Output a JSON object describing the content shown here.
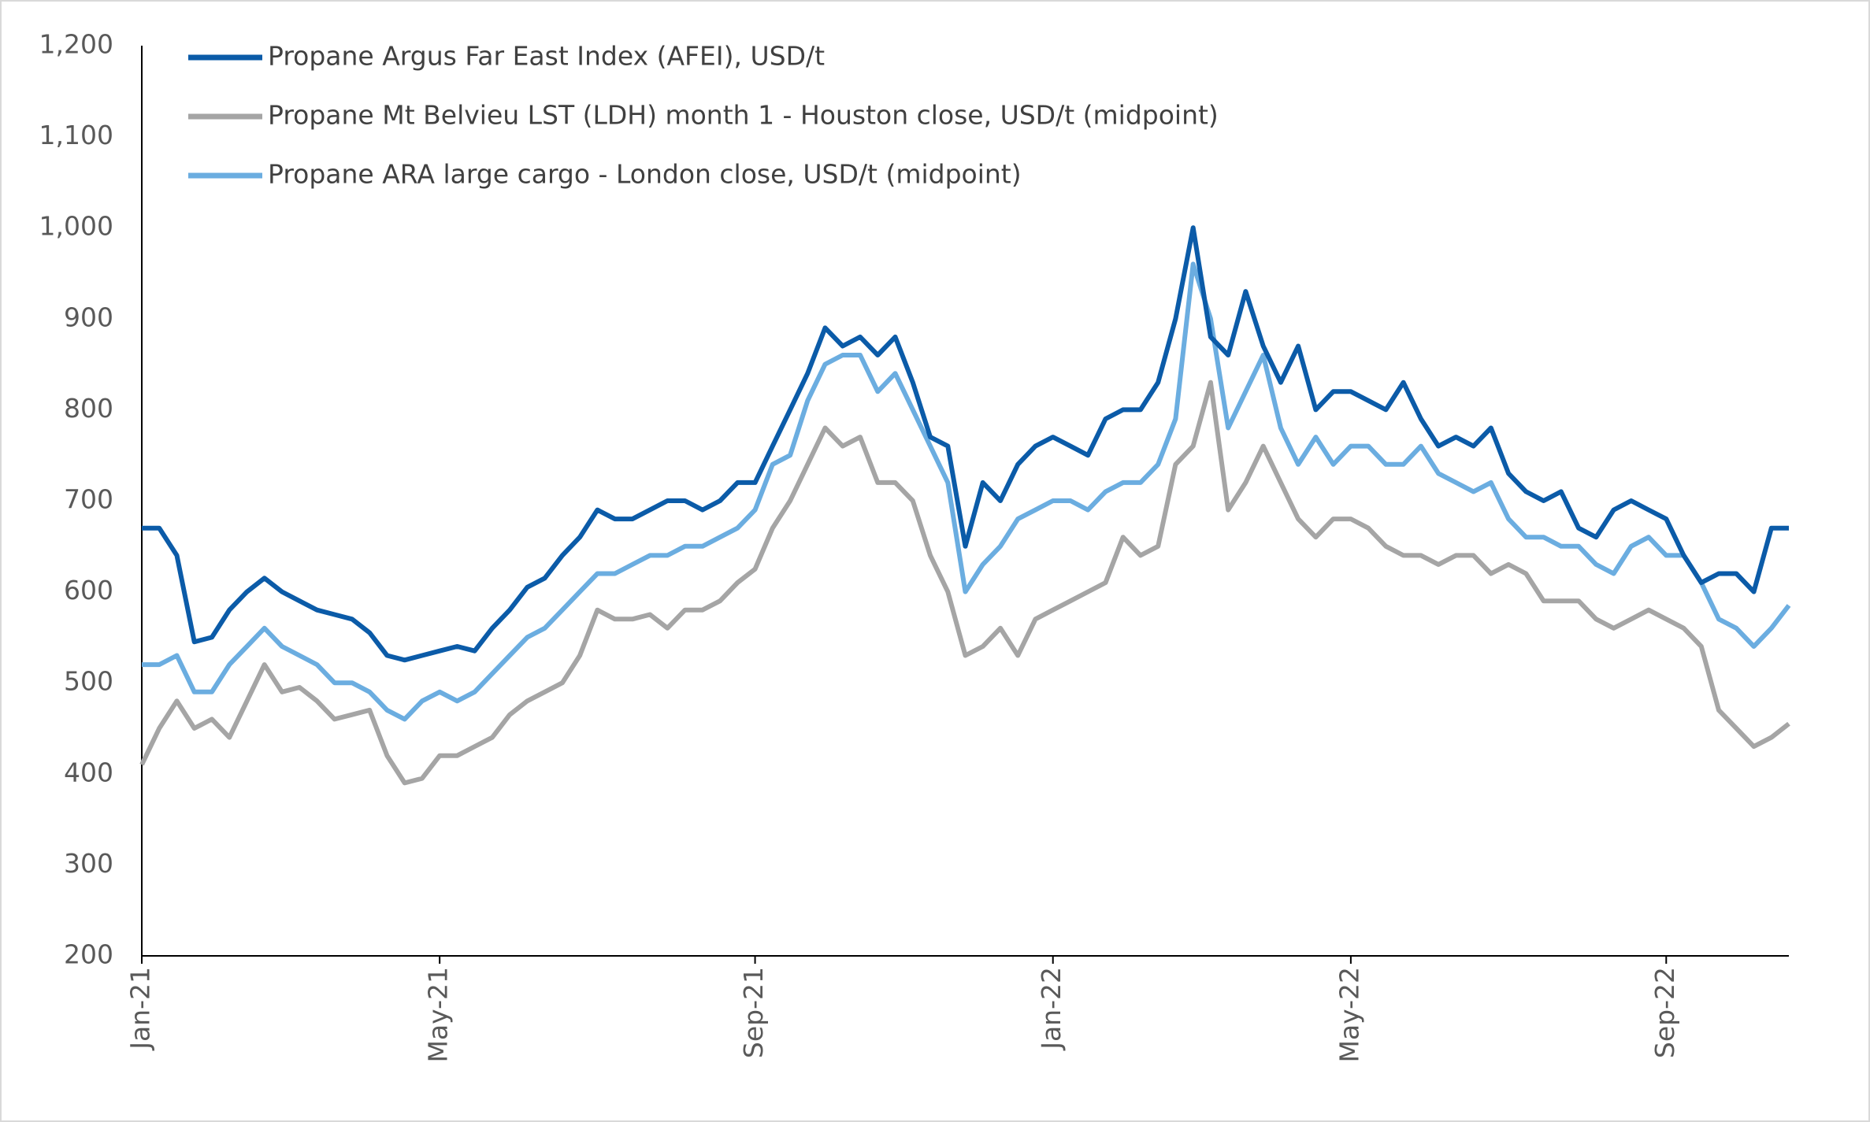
{
  "chart_data": {
    "type": "line",
    "categories": [
      "Jan-21",
      null,
      null,
      null,
      null,
      null,
      null,
      null,
      null,
      null,
      null,
      null,
      null,
      null,
      null,
      null,
      null,
      "May-21",
      null,
      null,
      null,
      null,
      null,
      null,
      null,
      null,
      null,
      null,
      null,
      null,
      null,
      null,
      null,
      null,
      null,
      "Sep-21",
      null,
      null,
      null,
      null,
      null,
      null,
      null,
      null,
      null,
      null,
      null,
      null,
      null,
      null,
      null,
      null,
      "Jan-22",
      null,
      null,
      null,
      null,
      null,
      null,
      null,
      null,
      null,
      null,
      null,
      null,
      null,
      null,
      null,
      null,
      "May-22",
      null,
      null,
      null,
      null,
      null,
      null,
      null,
      null,
      null,
      null,
      null,
      null,
      null,
      null,
      null,
      null,
      null,
      "Sep-22",
      null,
      null,
      null,
      null,
      null,
      null,
      null
    ],
    "series": [
      {
        "name": "Propane Argus Far East Index (AFEI), USD/t",
        "color": "#0b5ba8",
        "values": [
          670,
          670,
          640,
          545,
          550,
          580,
          600,
          615,
          600,
          590,
          580,
          575,
          570,
          555,
          530,
          525,
          530,
          535,
          540,
          535,
          560,
          580,
          605,
          615,
          640,
          660,
          690,
          680,
          680,
          690,
          700,
          700,
          690,
          700,
          720,
          720,
          760,
          800,
          840,
          890,
          870,
          880,
          860,
          880,
          830,
          770,
          760,
          650,
          720,
          700,
          740,
          760,
          770,
          760,
          750,
          790,
          800,
          800,
          830,
          900,
          1000,
          880,
          860,
          930,
          870,
          830,
          870,
          800,
          820,
          820,
          810,
          800,
          830,
          790,
          760,
          770,
          760,
          780,
          730,
          710,
          700,
          710,
          670,
          660,
          690,
          700,
          690,
          680,
          640,
          610,
          620,
          620,
          600,
          670,
          670
        ]
      },
      {
        "name": "Propane Mt Belvieu LST (LDH) month 1 - Houston close, USD/t (midpoint)",
        "color": "#a5a5a5",
        "values": [
          410,
          450,
          480,
          450,
          460,
          440,
          480,
          520,
          490,
          495,
          480,
          460,
          465,
          470,
          420,
          390,
          395,
          420,
          420,
          430,
          440,
          465,
          480,
          490,
          500,
          530,
          580,
          570,
          570,
          575,
          560,
          580,
          580,
          590,
          610,
          625,
          670,
          700,
          740,
          780,
          760,
          770,
          720,
          720,
          700,
          640,
          600,
          530,
          540,
          560,
          530,
          570,
          580,
          590,
          600,
          610,
          660,
          640,
          650,
          740,
          760,
          830,
          690,
          720,
          760,
          720,
          680,
          660,
          680,
          680,
          670,
          650,
          640,
          640,
          630,
          640,
          640,
          620,
          630,
          620,
          590,
          590,
          590,
          570,
          560,
          570,
          580,
          570,
          560,
          540,
          470,
          450,
          430,
          440,
          455
        ]
      },
      {
        "name": "Propane ARA large cargo - London close, USD/t (midpoint)",
        "color": "#6badE0",
        "values": [
          520,
          520,
          530,
          490,
          490,
          520,
          540,
          560,
          540,
          530,
          520,
          500,
          500,
          490,
          470,
          460,
          480,
          490,
          480,
          490,
          510,
          530,
          550,
          560,
          580,
          600,
          620,
          620,
          630,
          640,
          640,
          650,
          650,
          660,
          670,
          690,
          740,
          750,
          810,
          850,
          860,
          860,
          820,
          840,
          800,
          760,
          720,
          600,
          630,
          650,
          680,
          690,
          700,
          700,
          690,
          710,
          720,
          720,
          740,
          790,
          960,
          900,
          780,
          820,
          860,
          780,
          740,
          770,
          740,
          760,
          760,
          740,
          740,
          760,
          730,
          720,
          710,
          720,
          680,
          660,
          660,
          650,
          650,
          630,
          620,
          650,
          660,
          640,
          640,
          610,
          570,
          560,
          540,
          560,
          585
        ]
      }
    ],
    "ylim": [
      200,
      1200
    ],
    "yticks": [
      200,
      300,
      400,
      500,
      600,
      700,
      800,
      900,
      {
        "value": 1000,
        "label": "1,000"
      },
      {
        "value": 1100,
        "label": "1,100"
      },
      {
        "value": 1200,
        "label": "1,200"
      }
    ],
    "grid": false,
    "legend": "top-left"
  }
}
